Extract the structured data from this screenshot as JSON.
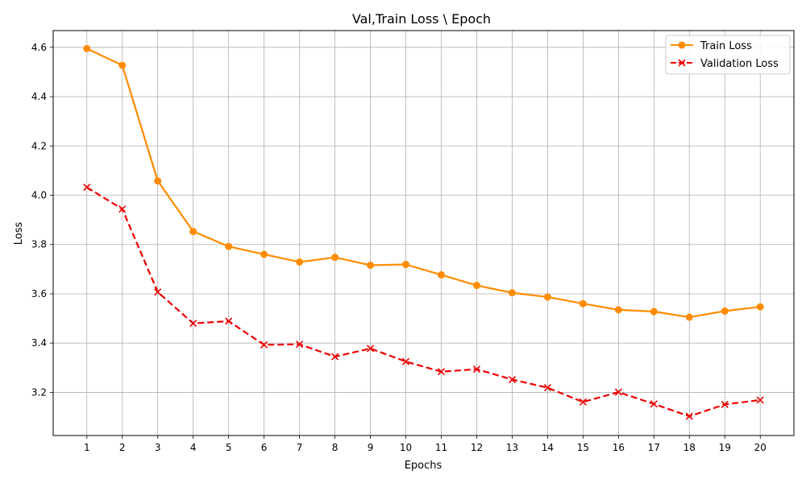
{
  "chart_data": {
    "type": "line",
    "title": "Val,Train Loss \\ Epoch",
    "xlabel": "Epochs",
    "ylabel": "Loss",
    "x": [
      1,
      2,
      3,
      4,
      5,
      6,
      7,
      8,
      9,
      10,
      11,
      12,
      13,
      14,
      15,
      16,
      17,
      18,
      19,
      20
    ],
    "xlim": [
      0.05,
      20.95
    ],
    "ylim": [
      3.025,
      4.668
    ],
    "yticks": [
      "3.2",
      "3.4",
      "3.6",
      "3.8",
      "4.0",
      "4.2",
      "4.4",
      "4.6"
    ],
    "grid": true,
    "legend_position": "top-right",
    "series": [
      {
        "name": "Train Loss",
        "color": "#ff8c00",
        "line_style": "solid",
        "marker": "circle",
        "values": [
          4.595,
          4.527,
          4.058,
          3.853,
          3.792,
          3.76,
          3.729,
          3.748,
          3.716,
          3.719,
          3.677,
          3.634,
          3.604,
          3.587,
          3.56,
          3.535,
          3.528,
          3.505,
          3.53,
          3.547
        ]
      },
      {
        "name": "Validation Loss",
        "color": "#ee0000",
        "line_style": "dashed",
        "marker": "x",
        "values": [
          4.032,
          3.944,
          3.607,
          3.48,
          3.489,
          3.393,
          3.395,
          3.345,
          3.378,
          3.325,
          3.284,
          3.294,
          3.252,
          3.219,
          3.161,
          3.201,
          3.153,
          3.103,
          3.151,
          3.169
        ]
      }
    ]
  }
}
